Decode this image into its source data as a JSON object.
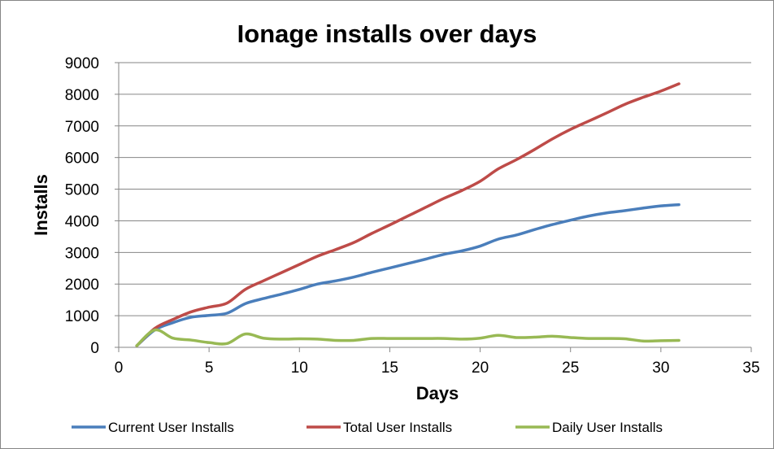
{
  "chart_data": {
    "type": "line",
    "title": "Ionage installs over days",
    "xlabel": "Days",
    "ylabel": "Installs",
    "xlim": [
      0,
      35
    ],
    "ylim": [
      0,
      9000
    ],
    "xticks": [
      0,
      5,
      10,
      15,
      20,
      25,
      30,
      35
    ],
    "yticks": [
      0,
      1000,
      2000,
      3000,
      4000,
      5000,
      6000,
      7000,
      8000,
      9000
    ],
    "grid": "horizontal",
    "legend_position": "bottom",
    "x": [
      1,
      2,
      3,
      4,
      5,
      6,
      7,
      8,
      9,
      10,
      11,
      12,
      13,
      14,
      15,
      16,
      17,
      18,
      19,
      20,
      21,
      22,
      23,
      24,
      25,
      26,
      27,
      28,
      29,
      30,
      31
    ],
    "series": [
      {
        "name": "Current User Installs",
        "color": "#4a7ebb",
        "values": [
          50,
          550,
          780,
          950,
          1010,
          1080,
          1380,
          1540,
          1680,
          1830,
          2000,
          2100,
          2220,
          2370,
          2510,
          2650,
          2790,
          2940,
          3050,
          3200,
          3420,
          3550,
          3720,
          3880,
          4020,
          4150,
          4250,
          4320,
          4400,
          4470,
          4510
        ]
      },
      {
        "name": "Total User Installs",
        "color": "#be4b48",
        "values": [
          50,
          600,
          880,
          1120,
          1270,
          1400,
          1830,
          2100,
          2360,
          2620,
          2880,
          3090,
          3310,
          3600,
          3870,
          4150,
          4430,
          4710,
          4960,
          5250,
          5640,
          5930,
          6250,
          6590,
          6890,
          7150,
          7410,
          7680,
          7900,
          8100,
          8330
        ]
      },
      {
        "name": "Daily User Installs",
        "color": "#98b954",
        "values": [
          50,
          550,
          290,
          230,
          150,
          120,
          420,
          290,
          260,
          270,
          260,
          220,
          220,
          280,
          280,
          280,
          280,
          280,
          260,
          290,
          380,
          310,
          320,
          350,
          310,
          280,
          280,
          270,
          200,
          210,
          220
        ]
      }
    ]
  }
}
